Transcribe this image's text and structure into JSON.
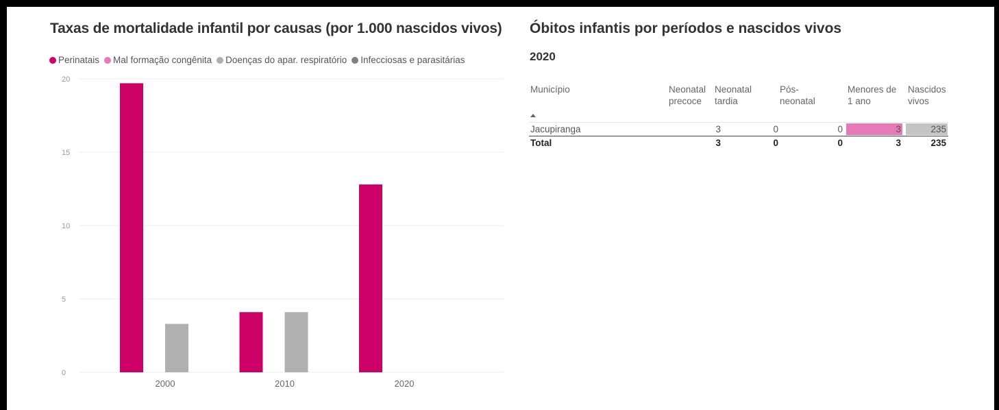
{
  "chart_data": {
    "type": "bar",
    "title": "Taxas de mortalidade infantil por causas  (por 1.000 nascidos vivos)",
    "categories": [
      "2000",
      "2010",
      "2020"
    ],
    "series": [
      {
        "name": "Perinatais",
        "color": "#cc0066",
        "values": [
          19.7,
          4.1,
          12.8
        ]
      },
      {
        "name": "Mal formação congênita",
        "color": "#e67ab6",
        "values": [
          0,
          0,
          0
        ]
      },
      {
        "name": "Doenças do apar. respiratório",
        "color": "#b0b0b0",
        "values": [
          3.3,
          4.1,
          0
        ]
      },
      {
        "name": "Infecciosas e parasitárias",
        "color": "#808080",
        "values": [
          0,
          0,
          0
        ]
      }
    ],
    "yticks": [
      "0",
      "5",
      "10",
      "15",
      "20"
    ],
    "ylim": [
      0,
      20
    ],
    "legend_position": "top-left",
    "grid": true
  },
  "table": {
    "title": "Óbitos infantis por períodos e nascidos vivos",
    "year": "2020",
    "columns": [
      {
        "line1": "Município",
        "line2": ""
      },
      {
        "line1": "Neonatal",
        "line2": "precoce"
      },
      {
        "line1": "Neonatal",
        "line2": "tardia"
      },
      {
        "line1": "Pós-",
        "line2": "neonatal"
      },
      {
        "line1": "Menores de",
        "line2": "1 ano"
      },
      {
        "line1": "Nascidos",
        "line2": "vivos"
      }
    ],
    "rows": [
      {
        "municipio": "Jacupiranga",
        "neonatal_precoce": "3",
        "neonatal_tardia": "0",
        "pos_neonatal": "0",
        "menores_1_ano": "3",
        "nascidos_vivos": "235"
      }
    ],
    "total": {
      "label": "Total",
      "neonatal_precoce": "3",
      "neonatal_tardia": "0",
      "pos_neonatal": "0",
      "menores_1_ano": "3",
      "nascidos_vivos": "235"
    },
    "colors": {
      "menores_bar": "#e67ab6",
      "nascidos_bar": "#c4c4c4"
    }
  }
}
